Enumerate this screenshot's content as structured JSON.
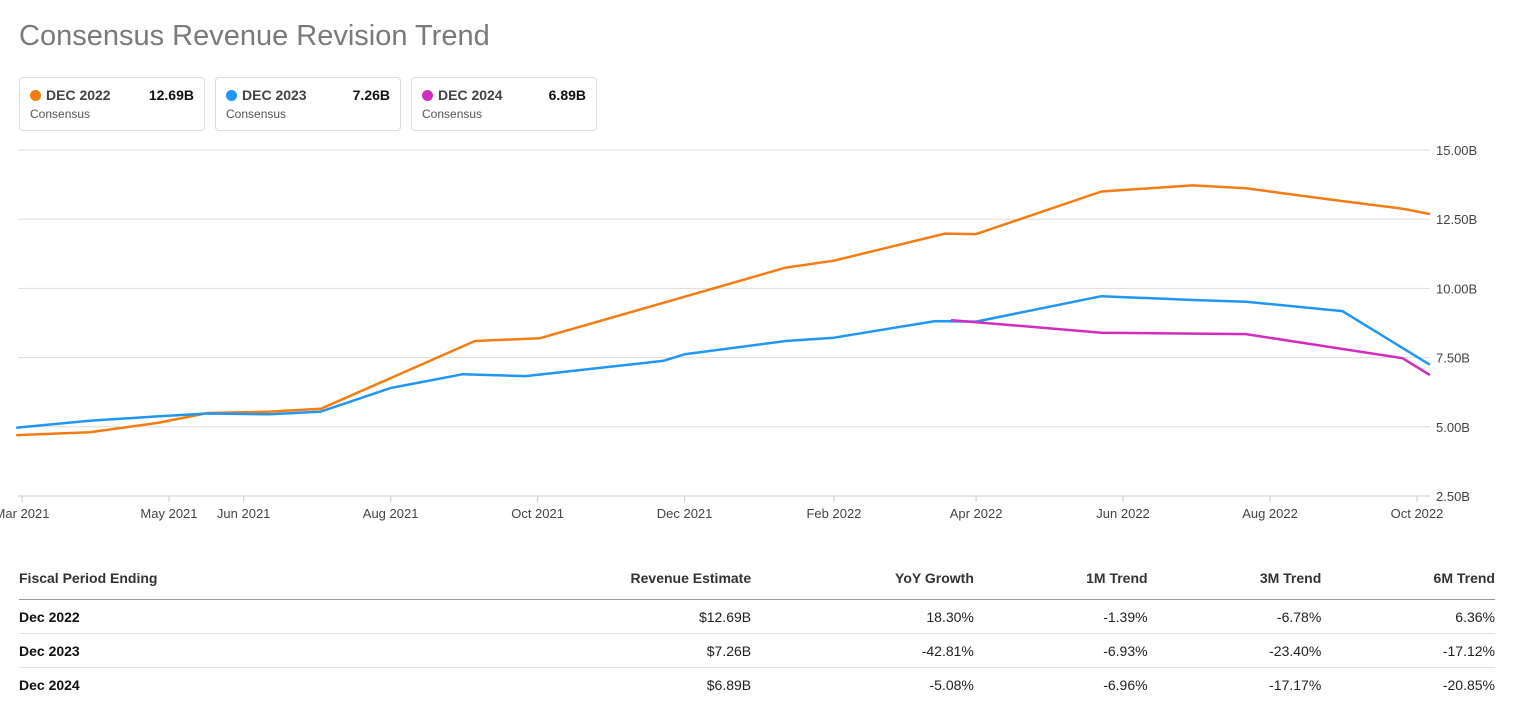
{
  "title": "Consensus Revenue Revision Trend",
  "legend": [
    {
      "label": "DEC 2022",
      "value": "12.69B",
      "sub": "Consensus",
      "color": "#f57c12"
    },
    {
      "label": "DEC 2023",
      "value": "7.26B",
      "sub": "Consensus",
      "color": "#2196f3"
    },
    {
      "label": "DEC 2024",
      "value": "6.89B",
      "sub": "Consensus",
      "color": "#d12ec0"
    }
  ],
  "chart_data": {
    "type": "line",
    "title": "Consensus Revenue Revision Trend",
    "xlabel": "",
    "ylabel": "",
    "x_range": [
      "2021-03-01",
      "2022-10-01"
    ],
    "ylim": [
      2.5,
      15.0
    ],
    "y_ticks": [
      15.0,
      12.5,
      10.0,
      7.5,
      5.0,
      2.5
    ],
    "y_tick_labels": [
      "15.00B",
      "12.50B",
      "10.00B",
      "7.50B",
      "5.00B",
      "2.50B"
    ],
    "x_ticks": [
      {
        "date": "2021-03-01",
        "label": "Mar 2021"
      },
      {
        "date": "2021-05-01",
        "label": "May 2021"
      },
      {
        "date": "2021-06-01",
        "label": "Jun 2021"
      },
      {
        "date": "2021-08-01",
        "label": "Aug 2021"
      },
      {
        "date": "2021-10-01",
        "label": "Oct 2021"
      },
      {
        "date": "2021-12-01",
        "label": "Dec 2021"
      },
      {
        "date": "2022-02-01",
        "label": "Feb 2022"
      },
      {
        "date": "2022-04-01",
        "label": "Apr 2022"
      },
      {
        "date": "2022-06-01",
        "label": "Jun 2022"
      },
      {
        "date": "2022-08-01",
        "label": "Aug 2022"
      },
      {
        "date": "2022-10-01",
        "label": "Oct 2022"
      }
    ],
    "series": [
      {
        "name": "DEC 2022",
        "color": "#f57c12",
        "points": [
          [
            "2021-02-27",
            4.7
          ],
          [
            "2021-03-29",
            4.8
          ],
          [
            "2021-04-27",
            5.15
          ],
          [
            "2021-05-17",
            5.5
          ],
          [
            "2021-06-12",
            5.55
          ],
          [
            "2021-07-03",
            5.65
          ],
          [
            "2021-09-05",
            8.1
          ],
          [
            "2021-10-02",
            8.2
          ],
          [
            "2021-11-13",
            9.25
          ],
          [
            "2022-01-12",
            10.75
          ],
          [
            "2022-02-01",
            11.0
          ],
          [
            "2022-03-19",
            11.98
          ],
          [
            "2022-04-01",
            11.96
          ],
          [
            "2022-05-23",
            13.5
          ],
          [
            "2022-06-30",
            13.72
          ],
          [
            "2022-07-22",
            13.62
          ],
          [
            "2022-08-25",
            13.22
          ],
          [
            "2022-09-25",
            12.88
          ],
          [
            "2022-10-06",
            12.69
          ]
        ]
      },
      {
        "name": "DEC 2023",
        "color": "#2196f3",
        "points": [
          [
            "2021-02-27",
            4.97
          ],
          [
            "2021-03-29",
            5.22
          ],
          [
            "2021-04-27",
            5.38
          ],
          [
            "2021-05-17",
            5.48
          ],
          [
            "2021-06-12",
            5.45
          ],
          [
            "2021-07-03",
            5.55
          ],
          [
            "2021-08-01",
            6.4
          ],
          [
            "2021-08-31",
            6.9
          ],
          [
            "2021-09-26",
            6.83
          ],
          [
            "2021-11-22",
            7.38
          ],
          [
            "2021-12-01",
            7.62
          ],
          [
            "2022-01-12",
            8.1
          ],
          [
            "2022-02-01",
            8.22
          ],
          [
            "2022-03-15",
            8.82
          ],
          [
            "2022-04-01",
            8.8
          ],
          [
            "2022-05-23",
            9.72
          ],
          [
            "2022-06-30",
            9.58
          ],
          [
            "2022-07-22",
            9.52
          ],
          [
            "2022-08-31",
            9.18
          ],
          [
            "2022-10-06",
            7.26
          ]
        ]
      },
      {
        "name": "DEC 2024",
        "color": "#d12ec0",
        "points": [
          [
            "2022-03-22",
            8.85
          ],
          [
            "2022-04-01",
            8.78
          ],
          [
            "2022-05-23",
            8.4
          ],
          [
            "2022-07-22",
            8.35
          ],
          [
            "2022-09-25",
            7.48
          ],
          [
            "2022-10-06",
            6.89
          ]
        ]
      }
    ]
  },
  "table": {
    "headers": [
      "Fiscal Period Ending",
      "Revenue Estimate",
      "YoY Growth",
      "1M Trend",
      "3M Trend",
      "6M Trend"
    ],
    "rows": [
      {
        "period": "Dec 2022",
        "estimate": "$12.69B",
        "yoy": "18.30%",
        "m1": "-1.39%",
        "m3": "-6.78%",
        "m6": "6.36%"
      },
      {
        "period": "Dec 2023",
        "estimate": "$7.26B",
        "yoy": "-42.81%",
        "m1": "-6.93%",
        "m3": "-23.40%",
        "m6": "-17.12%"
      },
      {
        "period": "Dec 2024",
        "estimate": "$6.89B",
        "yoy": "-5.08%",
        "m1": "-6.96%",
        "m3": "-17.17%",
        "m6": "-20.85%"
      }
    ]
  }
}
